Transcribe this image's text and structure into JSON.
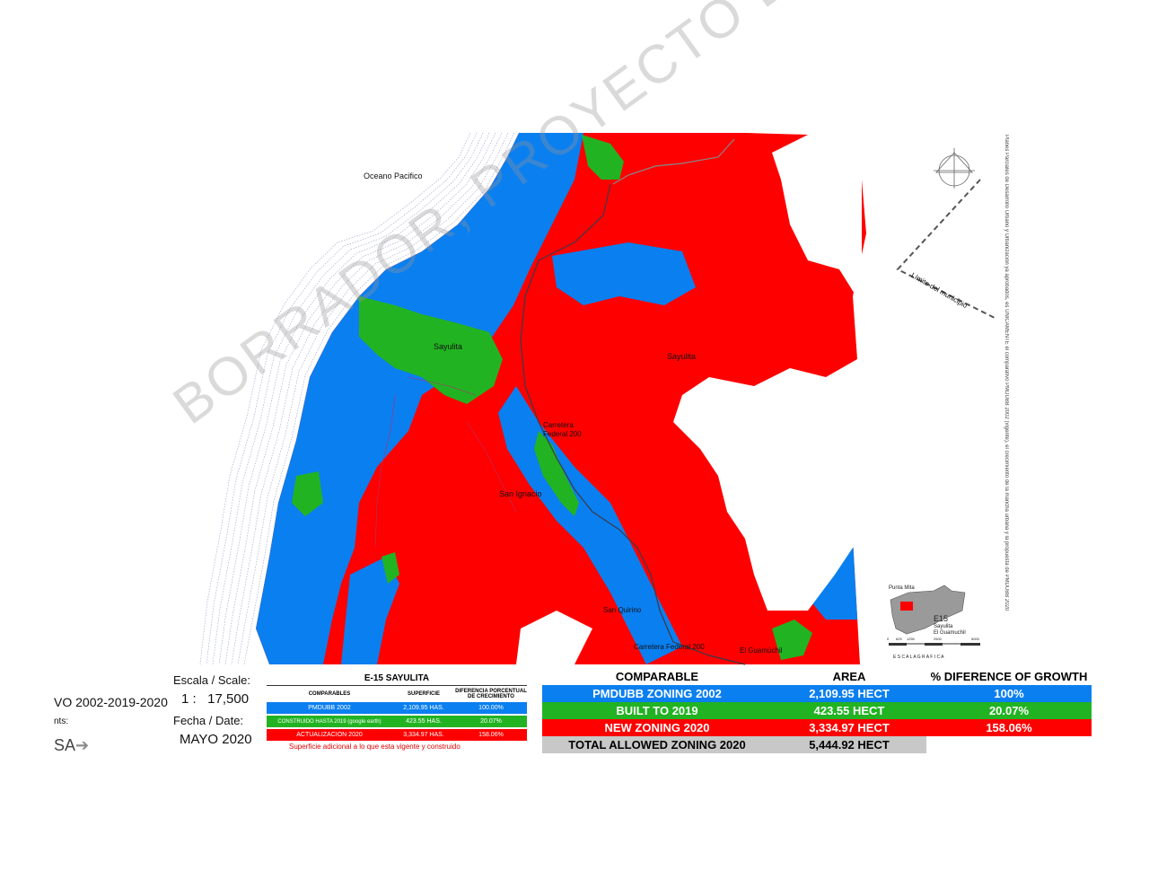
{
  "map": {
    "ocean_label": "Oceano Pacifico",
    "municipal_limit_label": "Límite del municipio",
    "places": [
      {
        "name": "Sayulita",
        "kind": "town"
      },
      {
        "name": "Sayulita",
        "kind": "area"
      },
      {
        "name": "Carretera Federal 200",
        "kind": "road"
      },
      {
        "name": "San Ignacio",
        "kind": "town"
      },
      {
        "name": "San Quirino",
        "kind": "town"
      },
      {
        "name": "Carretera Federal 200",
        "kind": "road"
      },
      {
        "name": "El Guamúchil",
        "kind": "town"
      }
    ],
    "watermark": "BORRADOR, PROYECTO EN PROCESO",
    "side_note": "Planes Parciales de Desarrollo Urbano y Urbanización ya aprobados, es ÚNICAMENTE el comparativo PMDUBB 2002 (vigente), el crecimiento de la mancha urbana y la propuesta de PMDUBB 2020",
    "colors": {
      "zoning_2002": "#0a7ff0",
      "built_2019": "#22b322",
      "new_zoning_2020": "#ff0000",
      "ocean_contour": "#9aa0c8"
    }
  },
  "title_block": {
    "plan_title_fragment": "VO 2002-2019-2020",
    "contents_fragment": "nts:",
    "logo_fragment": "SA",
    "scale_label": "Escala / Scale:",
    "scale_value": "1 :   17,500",
    "date_label": "Fecha / Date:",
    "date_value": "MAYO  2020"
  },
  "legend_spanish": {
    "title": "E-15    SAYULITA",
    "headers": [
      "COMPARABLES",
      "SUPERFICIE",
      "DIFERENCIA PORCENTUAL DE CRECIMIENTO"
    ],
    "rows": [
      {
        "name": "PMDUBB    2002",
        "area": "2,109.95 HAS.",
        "pct": "100.00%",
        "color": "#0a7ff0"
      },
      {
        "name": "CONSTRUIDO HASTA 2019 (google earth)",
        "area": "423.55 HAS.",
        "pct": "20.07%",
        "color": "#22b322"
      },
      {
        "name": "ACTUALIZACION  2020",
        "area": "3,334.97 HAS.",
        "pct": "158.06%",
        "color": "#ff0000"
      }
    ],
    "note": "Superficie adicional a lo que esta vigente y construido"
  },
  "legend_english": {
    "headers": [
      "COMPARABLE",
      "AREA",
      "% DIFERENCE OF GROWTH"
    ],
    "rows": [
      {
        "name": "PMDUBB ZONING 2002",
        "area": "2,109.95 HECT",
        "pct": "100%",
        "color": "#0a7ff0"
      },
      {
        "name": "BUILT TO 2019",
        "area": "423.55 HECT",
        "pct": "20.07%",
        "color": "#22b322"
      },
      {
        "name": "NEW ZONING 2020",
        "area": "3,334.97 HECT",
        "pct": "158.06%",
        "color": "#ff0000"
      }
    ],
    "total": {
      "name": "TOTAL ALLOWED ZONING 2020",
      "area": "5,444.92 HECT",
      "color": "#c8c8c8"
    }
  },
  "inset": {
    "small_label": "Punta Mita",
    "code": "E15",
    "name_line1": "Sayulita",
    "name_line2": "El Guamuchil",
    "scale_caption": "E S C A L A   G R A F I C A",
    "scale_ticks": [
      "0",
      "625",
      "1250",
      "2500",
      "5000"
    ]
  }
}
